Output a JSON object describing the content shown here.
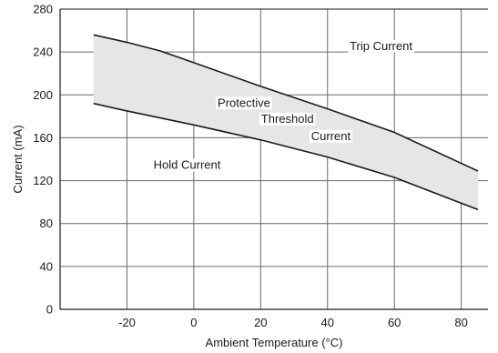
{
  "chart_data": {
    "type": "area",
    "title": "",
    "xlabel": "Ambient Temperature (°C)",
    "ylabel": "Current (mA)",
    "xlim": [
      -40,
      88
    ],
    "ylim": [
      0,
      280
    ],
    "xticks": [
      -20,
      0,
      20,
      40,
      60,
      80
    ],
    "yticks": [
      0,
      40,
      80,
      120,
      160,
      200,
      240,
      280
    ],
    "grid": true,
    "legend": "none",
    "series": [
      {
        "name": "Trip Current",
        "x": [
          -30,
          -20,
          -10,
          0,
          20,
          40,
          60,
          85
        ],
        "values": [
          256,
          249,
          241,
          230,
          208,
          187,
          165,
          129
        ]
      },
      {
        "name": "Hold Current",
        "x": [
          -30,
          -20,
          0,
          20,
          40,
          60,
          85
        ],
        "values": [
          192,
          185,
          172,
          158,
          142,
          123,
          93
        ]
      }
    ],
    "band": {
      "upper": "Trip Current",
      "lower": "Hold Current",
      "fill": "#e6e6e6"
    },
    "annotations": [
      {
        "id": "trip",
        "text": "Trip Current",
        "x": 56,
        "y": 242
      },
      {
        "id": "prot1",
        "text": "Protective",
        "x": 15,
        "y": 189
      },
      {
        "id": "prot2",
        "text": "Threshold",
        "x": 28,
        "y": 174
      },
      {
        "id": "prot3",
        "text": "Current",
        "x": 41,
        "y": 158
      },
      {
        "id": "hold",
        "text": "Hold Current",
        "x": -2,
        "y": 131
      }
    ],
    "colors": {
      "line": "#1a1a1a",
      "grid": "#6a6a6a",
      "fill": "#e6e6e6"
    }
  }
}
